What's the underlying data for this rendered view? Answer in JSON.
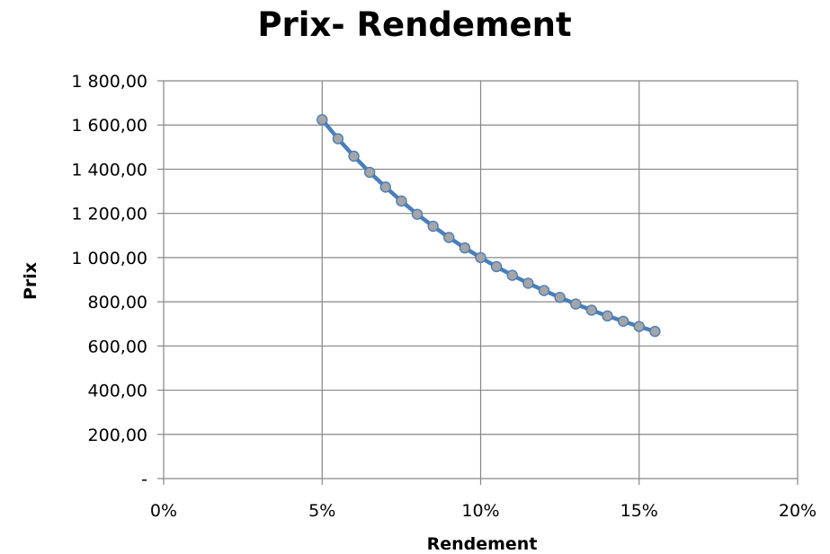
{
  "chart_data": {
    "type": "line",
    "title": "Prix- Rendement",
    "xlabel": "Rendement",
    "ylabel": "Prix",
    "xlim": [
      0,
      0.2
    ],
    "ylim": [
      0,
      1800
    ],
    "x_ticks": [
      0,
      0.05,
      0.1,
      0.15,
      0.2
    ],
    "x_tick_labels": [
      "0%",
      "5%",
      "10%",
      "15%",
      "20%"
    ],
    "y_ticks": [
      0,
      200,
      400,
      600,
      800,
      1000,
      1200,
      1400,
      1600,
      1800
    ],
    "y_tick_labels": [
      "-",
      "200,00",
      "400,00",
      "600,00",
      "800,00",
      "1 000,00",
      "1 200,00",
      "1 400,00",
      "1 600,00",
      "1 800,00"
    ],
    "grid": true,
    "legend": "none",
    "series_color": "#4a7ebb",
    "marker_color": "#a5a5a5",
    "series": [
      {
        "x": [
          0.05,
          0.055,
          0.06,
          0.065,
          0.07,
          0.075,
          0.08,
          0.085,
          0.09,
          0.095,
          0.1,
          0.105,
          0.11,
          0.115,
          0.12,
          0.125,
          0.13,
          0.135,
          0.14,
          0.145,
          0.15,
          0.155
        ],
        "values": [
          1624,
          1538,
          1459,
          1386,
          1319,
          1256,
          1196,
          1142,
          1091,
          1044,
          1000,
          959,
          920,
          884,
          851,
          820,
          790,
          762,
          736,
          712,
          688,
          666
        ]
      }
    ]
  }
}
